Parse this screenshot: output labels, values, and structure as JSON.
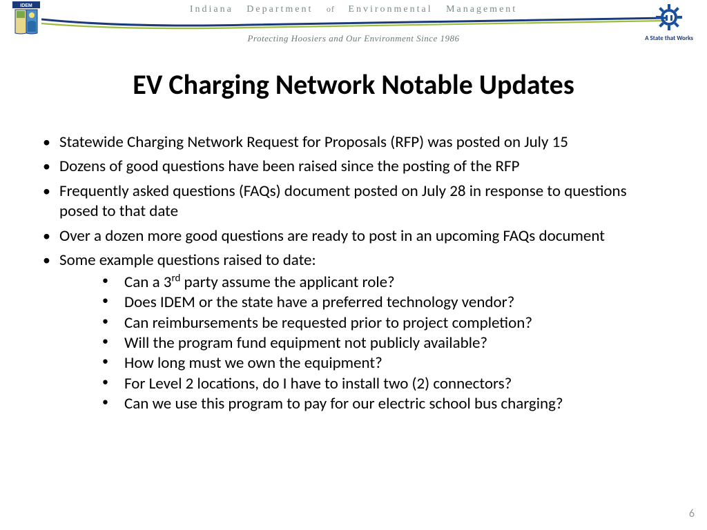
{
  "header": {
    "dept_p1": "Indiana",
    "dept_p2": "Department",
    "dept_of": "of",
    "dept_p3": "Environmental",
    "dept_p4": "Management",
    "tagline": "Protecting Hoosiers and Our Environment Since 1986",
    "state_motto": "A State that Works",
    "idem_label": "IDEM",
    "colors": {
      "swoosh_navy": "#1a3a7a",
      "swoosh_green": "#9bbf3b",
      "header_text": "#7b8a8a",
      "gear_blue": "#1a4fa0"
    }
  },
  "title": "EV Charging Network Notable Updates",
  "bullets": [
    {
      "text": "Statewide Charging Network Request for Proposals (RFP) was posted on July 15"
    },
    {
      "text": "Dozens of good questions have been raised since the posting of the RFP"
    },
    {
      "text": "Frequently asked questions (FAQs) document posted on July 28 in response to questions posed to that date"
    },
    {
      "text": "Over a dozen more good questions are ready to post in an upcoming FAQs document"
    },
    {
      "text": "Some example questions raised to date:",
      "sub": [
        {
          "pre": "Can a 3",
          "sup": "rd",
          "post": " party assume the applicant role?"
        },
        {
          "text": "Does IDEM or the state have a preferred technology vendor?"
        },
        {
          "text": "Can reimbursements be requested prior to project completion?"
        },
        {
          "text": "Will the program fund equipment not publicly available?"
        },
        {
          "text": "How long must we own the equipment?"
        },
        {
          "text": "For Level 2 locations, do I have to install two (2) connectors?"
        },
        {
          "text": "Can we use this program to pay for our electric school bus charging?"
        }
      ]
    }
  ],
  "page_number": "6"
}
